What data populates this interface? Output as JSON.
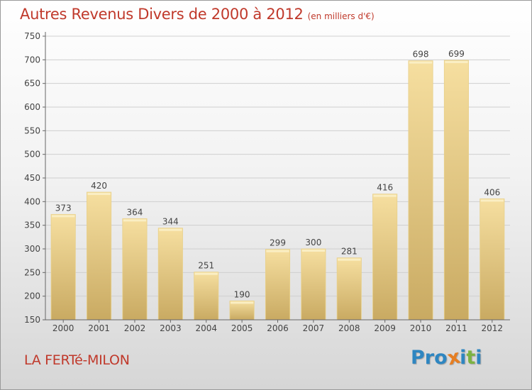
{
  "header": {
    "title": "Autres Revenus Divers de 2000 à 2012",
    "subtitle": "(en milliers d'€)"
  },
  "footer": {
    "city": "LA FERTé-MILON",
    "logo_letters": [
      {
        "ch": "P",
        "color": "#2e86c1"
      },
      {
        "ch": "r",
        "color": "#2e86c1"
      },
      {
        "ch": "o",
        "color": "#2e86c1"
      },
      {
        "ch": "x",
        "color": "#e67e22"
      },
      {
        "ch": "i",
        "color": "#2e86c1"
      },
      {
        "ch": "t",
        "color": "#7cb342"
      },
      {
        "ch": "i",
        "color": "#2e86c1"
      }
    ]
  },
  "colors": {
    "accent": "#c0392b",
    "bar_light": "#f6dfa0",
    "bar_dark": "#c9aa62",
    "axis": "#666666",
    "grid": "#cfcfcf"
  },
  "chart_data": {
    "type": "bar",
    "categories": [
      "2000",
      "2001",
      "2002",
      "2003",
      "2004",
      "2005",
      "2006",
      "2007",
      "2008",
      "2009",
      "2010",
      "2011",
      "2012"
    ],
    "values": [
      373,
      420,
      364,
      344,
      251,
      190,
      299,
      300,
      281,
      416,
      698,
      699,
      406
    ],
    "data_labels": [
      "373",
      "420",
      "364",
      "344",
      "251",
      "190",
      "299",
      "300",
      "281",
      "416",
      "698",
      "699",
      "406"
    ],
    "y_ticks": [
      "150",
      "200",
      "250",
      "300",
      "350",
      "400",
      "450",
      "500",
      "550",
      "600",
      "650",
      "700",
      "750"
    ],
    "ylim": [
      150,
      750
    ],
    "grid": true,
    "legend": "none"
  }
}
